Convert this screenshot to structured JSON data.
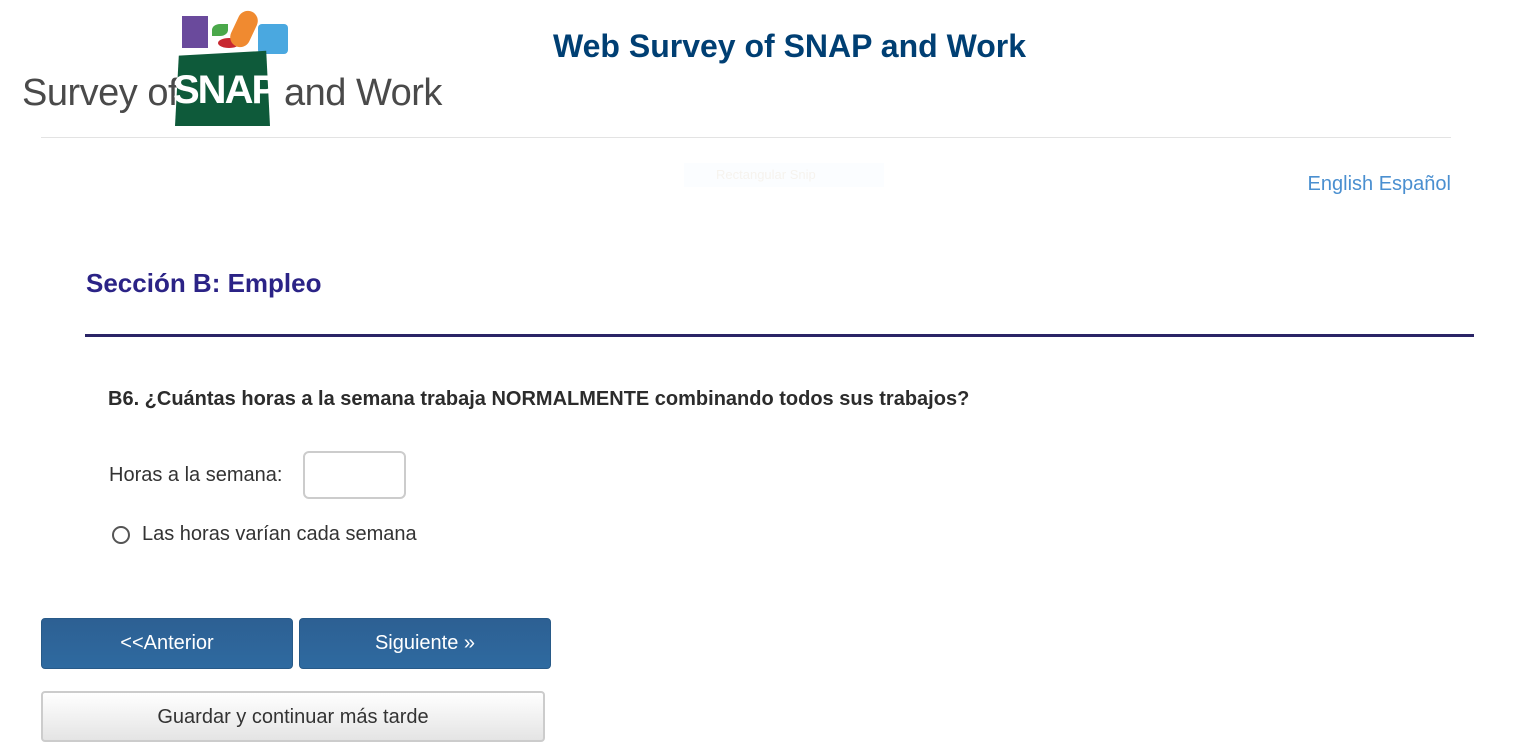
{
  "header": {
    "logo": {
      "text_left": "Survey of",
      "text_brand": "SNAP",
      "text_right": "and Work"
    },
    "title": "Web Survey of SNAP and Work"
  },
  "overlay": {
    "snip_label": "Rectangular Snip"
  },
  "language": {
    "english": "English",
    "spanish": "Español"
  },
  "section": {
    "title": "Sección B: Empleo"
  },
  "question": {
    "text": "B6. ¿Cuántas horas a la semana trabaja NORMALMENTE combinando todos sus trabajos?",
    "hours_label": "Horas a la semana:",
    "hours_value": "",
    "radio_label": "Las horas varían cada semana",
    "radio_checked": false
  },
  "buttons": {
    "previous": "<<Anterior",
    "next": "Siguiente »",
    "save": "Guardar y continuar más tarde"
  },
  "colors": {
    "title": "#003f73",
    "section": "#2b2386",
    "button": "#2d6496",
    "link": "#4a8fd0"
  }
}
